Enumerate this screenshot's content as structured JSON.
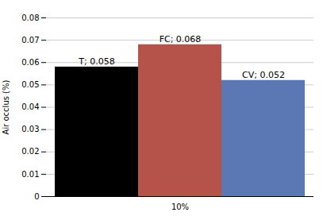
{
  "chart_data": {
    "type": "bar",
    "categories": [
      null,
      "10%",
      null
    ],
    "values": [
      0.058,
      0.068,
      0.052
    ],
    "value_labels": [
      "T; 0.058",
      "FC; 0.068",
      "CV; 0.052"
    ],
    "data_labels": true,
    "colors": [
      "#000000",
      "#b5524a",
      "#5b78b5"
    ],
    "ylabel": "Air occlus (%)",
    "ylim": [
      0,
      0.08
    ],
    "yticks": [
      0,
      0.01,
      0.02,
      0.03,
      0.04,
      0.05,
      0.06,
      0.07,
      0.08
    ],
    "grid": true
  }
}
